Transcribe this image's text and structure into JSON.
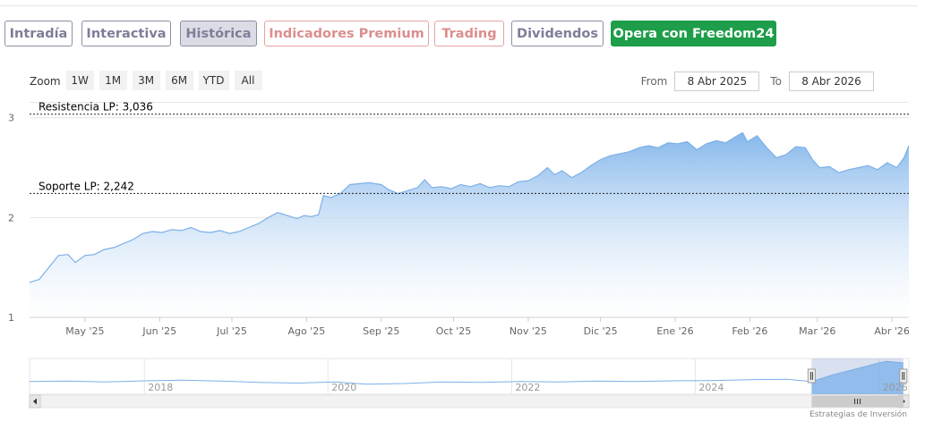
{
  "tabs": [
    {
      "label": "Intradía",
      "style": "normal"
    },
    {
      "label": "Interactiva",
      "style": "normal"
    },
    {
      "label": "Histórica",
      "style": "active"
    },
    {
      "label": "Indicadores Premium",
      "style": "premium"
    },
    {
      "label": "Trading",
      "style": "premium"
    },
    {
      "label": "Dividendos",
      "style": "normal"
    },
    {
      "label": "Opera con Freedom24",
      "style": "green"
    }
  ],
  "zoom": {
    "label": "Zoom",
    "buttons": [
      "1W",
      "1M",
      "3M",
      "6M",
      "YTD",
      "All"
    ]
  },
  "range": {
    "from_label": "From",
    "from_value": "8 Abr 2025",
    "to_label": "To",
    "to_value": "8 Abr 2026"
  },
  "colors": {
    "series_line": "#7cb0e8",
    "series_fill_top": "#7eb3ea",
    "series_fill_bottom": "#ffffff",
    "active_tab": "#dcdce6",
    "premium_tab": "#db8e8e",
    "green_tab": "#1e9e4a"
  },
  "chart_data": {
    "type": "area",
    "ylim": [
      1,
      3.15
    ],
    "y_ticks": [
      {
        "label": "1",
        "value": 1
      },
      {
        "label": "2",
        "value": 2
      },
      {
        "label": "3",
        "value": 3
      }
    ],
    "x_ticks": [
      "May '25",
      "Jun '25",
      "Jul '25",
      "Ago '25",
      "Sep '25",
      "Oct '25",
      "Nov '25",
      "Dic '25",
      "Ene '26",
      "Feb '26",
      "Mar '26",
      "Abr '26"
    ],
    "x_tick_dates": [
      "2025-05-01",
      "2025-06-01",
      "2025-07-01",
      "2025-08-01",
      "2025-09-01",
      "2025-10-01",
      "2025-11-01",
      "2025-12-01",
      "2026-01-01",
      "2026-02-01",
      "2026-03-01",
      "2026-04-01"
    ],
    "x_range": [
      "2025-04-08",
      "2026-04-08"
    ],
    "series": [
      {
        "points": [
          [
            "2025-04-08",
            1.35
          ],
          [
            "2025-04-12",
            1.38
          ],
          [
            "2025-04-16",
            1.5
          ],
          [
            "2025-04-20",
            1.62
          ],
          [
            "2025-04-24",
            1.63
          ],
          [
            "2025-04-27",
            1.55
          ],
          [
            "2025-05-01",
            1.62
          ],
          [
            "2025-05-05",
            1.63
          ],
          [
            "2025-05-09",
            1.68
          ],
          [
            "2025-05-13",
            1.7
          ],
          [
            "2025-05-17",
            1.74
          ],
          [
            "2025-05-21",
            1.78
          ],
          [
            "2025-05-25",
            1.84
          ],
          [
            "2025-05-29",
            1.86
          ],
          [
            "2025-06-02",
            1.85
          ],
          [
            "2025-06-06",
            1.88
          ],
          [
            "2025-06-10",
            1.87
          ],
          [
            "2025-06-14",
            1.9
          ],
          [
            "2025-06-18",
            1.86
          ],
          [
            "2025-06-22",
            1.85
          ],
          [
            "2025-06-26",
            1.87
          ],
          [
            "2025-06-30",
            1.84
          ],
          [
            "2025-07-04",
            1.86
          ],
          [
            "2025-07-08",
            1.9
          ],
          [
            "2025-07-12",
            1.94
          ],
          [
            "2025-07-16",
            2.0
          ],
          [
            "2025-07-20",
            2.05
          ],
          [
            "2025-07-24",
            2.02
          ],
          [
            "2025-07-28",
            1.99
          ],
          [
            "2025-07-31",
            2.02
          ],
          [
            "2025-08-03",
            2.01
          ],
          [
            "2025-08-06",
            2.03
          ],
          [
            "2025-08-08",
            2.22
          ],
          [
            "2025-08-11",
            2.2
          ],
          [
            "2025-08-15",
            2.24
          ],
          [
            "2025-08-19",
            2.33
          ],
          [
            "2025-08-23",
            2.34
          ],
          [
            "2025-08-27",
            2.35
          ],
          [
            "2025-09-01",
            2.33
          ],
          [
            "2025-09-04",
            2.28
          ],
          [
            "2025-09-08",
            2.24
          ],
          [
            "2025-09-12",
            2.27
          ],
          [
            "2025-09-16",
            2.3
          ],
          [
            "2025-09-19",
            2.38
          ],
          [
            "2025-09-22",
            2.3
          ],
          [
            "2025-09-26",
            2.31
          ],
          [
            "2025-09-30",
            2.29
          ],
          [
            "2025-10-04",
            2.33
          ],
          [
            "2025-10-08",
            2.31
          ],
          [
            "2025-10-12",
            2.34
          ],
          [
            "2025-10-16",
            2.3
          ],
          [
            "2025-10-20",
            2.32
          ],
          [
            "2025-10-24",
            2.31
          ],
          [
            "2025-10-28",
            2.36
          ],
          [
            "2025-11-01",
            2.37
          ],
          [
            "2025-11-05",
            2.42
          ],
          [
            "2025-11-09",
            2.5
          ],
          [
            "2025-11-12",
            2.43
          ],
          [
            "2025-11-15",
            2.47
          ],
          [
            "2025-11-19",
            2.4
          ],
          [
            "2025-11-23",
            2.45
          ],
          [
            "2025-11-27",
            2.52
          ],
          [
            "2025-12-01",
            2.58
          ],
          [
            "2025-12-05",
            2.62
          ],
          [
            "2025-12-09",
            2.64
          ],
          [
            "2025-12-13",
            2.66
          ],
          [
            "2025-12-17",
            2.7
          ],
          [
            "2025-12-21",
            2.72
          ],
          [
            "2025-12-25",
            2.7
          ],
          [
            "2025-12-29",
            2.75
          ],
          [
            "2026-01-02",
            2.74
          ],
          [
            "2026-01-06",
            2.76
          ],
          [
            "2026-01-10",
            2.68
          ],
          [
            "2026-01-14",
            2.74
          ],
          [
            "2026-01-18",
            2.77
          ],
          [
            "2026-01-22",
            2.75
          ],
          [
            "2026-01-26",
            2.81
          ],
          [
            "2026-01-29",
            2.85
          ],
          [
            "2026-01-31",
            2.76
          ],
          [
            "2026-02-04",
            2.82
          ],
          [
            "2026-02-08",
            2.7
          ],
          [
            "2026-02-12",
            2.6
          ],
          [
            "2026-02-16",
            2.63
          ],
          [
            "2026-02-20",
            2.71
          ],
          [
            "2026-02-24",
            2.7
          ],
          [
            "2026-02-27",
            2.58
          ],
          [
            "2026-03-02",
            2.5
          ],
          [
            "2026-03-06",
            2.51
          ],
          [
            "2026-03-10",
            2.45
          ],
          [
            "2026-03-14",
            2.48
          ],
          [
            "2026-03-18",
            2.5
          ],
          [
            "2026-03-22",
            2.52
          ],
          [
            "2026-03-26",
            2.48
          ],
          [
            "2026-03-30",
            2.55
          ],
          [
            "2026-04-03",
            2.5
          ],
          [
            "2026-04-06",
            2.6
          ],
          [
            "2026-04-08",
            2.72
          ]
        ]
      }
    ],
    "plot_lines": [
      {
        "label": "Resistencia LP: 3,036",
        "value": 3.036
      },
      {
        "label": "Soporte LP: 2,242",
        "value": 2.242
      }
    ],
    "navigator": {
      "ticks": [
        "2018",
        "2020",
        "2022",
        "2024",
        "2026"
      ],
      "tick_dates": [
        "2018-01-01",
        "2020-01-01",
        "2022-01-01",
        "2024-01-01",
        "2026-01-01"
      ],
      "x_range": [
        "2016-10-01",
        "2026-04-30"
      ],
      "selected_range": [
        "2025-04-08",
        "2026-04-08"
      ],
      "points": [
        [
          "2016-10-01",
          1.45
        ],
        [
          "2017-03-01",
          1.48
        ],
        [
          "2017-08-01",
          1.43
        ],
        [
          "2018-01-01",
          1.5
        ],
        [
          "2018-06-01",
          1.55
        ],
        [
          "2018-11-01",
          1.48
        ],
        [
          "2019-04-01",
          1.4
        ],
        [
          "2019-09-01",
          1.35
        ],
        [
          "2020-02-01",
          1.42
        ],
        [
          "2020-06-01",
          1.28
        ],
        [
          "2020-11-01",
          1.32
        ],
        [
          "2021-04-01",
          1.42
        ],
        [
          "2021-09-01",
          1.4
        ],
        [
          "2022-02-01",
          1.45
        ],
        [
          "2022-07-01",
          1.42
        ],
        [
          "2022-12-01",
          1.48
        ],
        [
          "2023-05-01",
          1.46
        ],
        [
          "2023-10-01",
          1.5
        ],
        [
          "2024-03-01",
          1.52
        ],
        [
          "2024-08-01",
          1.58
        ],
        [
          "2025-01-01",
          1.6
        ],
        [
          "2025-04-08",
          1.45
        ],
        [
          "2025-07-01",
          1.9
        ],
        [
          "2025-10-01",
          2.3
        ],
        [
          "2026-01-01",
          2.7
        ],
        [
          "2026-02-01",
          2.8
        ],
        [
          "2026-04-08",
          2.7
        ]
      ]
    },
    "credit": "Estrategias de Inversión"
  }
}
